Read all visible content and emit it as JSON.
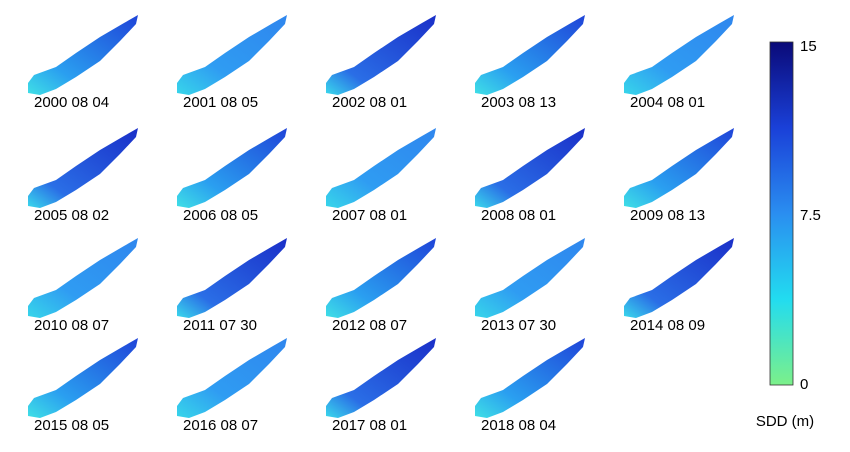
{
  "panels": [
    {
      "label": "2000 08 04"
    },
    {
      "label": "2001 08 05"
    },
    {
      "label": "2002 08 01"
    },
    {
      "label": "2003 08 13"
    },
    {
      "label": "2004 08 01"
    },
    {
      "label": "2005 08 02"
    },
    {
      "label": "2006 08 05"
    },
    {
      "label": "2007 08 01"
    },
    {
      "label": "2008 08 01"
    },
    {
      "label": "2009 08 13"
    },
    {
      "label": "2010 08 07"
    },
    {
      "label": "2011 07 30"
    },
    {
      "label": "2012 08 07"
    },
    {
      "label": "2013 07 30"
    },
    {
      "label": "2014 08 09"
    },
    {
      "label": "2015 08 05"
    },
    {
      "label": "2016 08 07"
    },
    {
      "label": "2017 08 01"
    },
    {
      "label": "2018 08 04"
    }
  ],
  "colorbar": {
    "label": "SDD (m)",
    "range": [
      0,
      15
    ],
    "ticks": [
      0,
      7.5,
      15
    ]
  }
}
